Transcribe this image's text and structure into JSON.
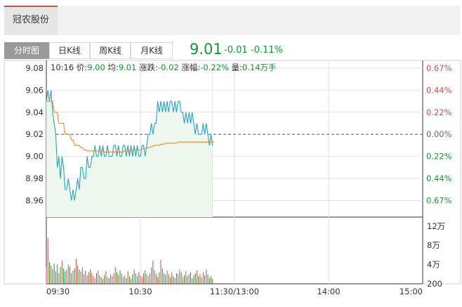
{
  "header": {
    "stock_tab": "冠农股份"
  },
  "tabs": [
    {
      "label": "分时图",
      "active": true
    },
    {
      "label": "日K线",
      "active": false
    },
    {
      "label": "周K线",
      "active": false
    },
    {
      "label": "月K线",
      "active": false
    }
  ],
  "quote": {
    "price": "9.01",
    "change": "-0.01",
    "change_pct": "-0.11%",
    "color": "#0c9b30"
  },
  "info": {
    "time": "10:16",
    "price_label": "价:",
    "price": "9.00",
    "avg_label": "均:",
    "avg": "9.01",
    "change_label": "涨跌:",
    "change": "-0.02",
    "amp_label": "涨幅:",
    "amp": "-0.22%",
    "vol_label": "量:",
    "vol": "0.14万手"
  },
  "chart_data": {
    "type": "line",
    "prev_close": 9.02,
    "ylim": [
      8.945,
      9.087
    ],
    "y_ticks": [
      "9.08",
      "9.06",
      "9.04",
      "9.02",
      "9.00",
      "8.98",
      "8.96"
    ],
    "y_tick_values": [
      9.08,
      9.06,
      9.04,
      9.02,
      9.0,
      8.98,
      8.96
    ],
    "pct_ticks": [
      "0.67%",
      "0.44%",
      "0.22%",
      "0.00%",
      "0.22%",
      "0.44%",
      "0.67%"
    ],
    "pct_colors": [
      "#c8504b",
      "#c8504b",
      "#c8504b",
      "#666666",
      "#0c9b30",
      "#0c9b30",
      "#0c9b30"
    ],
    "x_ticks": [
      "09:30",
      "10:30",
      "11:30/13:00",
      "14:00",
      "15:00"
    ],
    "x_tick_minutes": [
      0,
      60,
      120,
      180,
      240
    ],
    "total_minutes": 240,
    "series": [
      {
        "values": [
          9.05,
          9.06,
          9.05,
          9.06,
          9.04,
          9.03,
          9.02,
          8.99,
          9.0,
          8.98,
          9.0,
          8.99,
          8.97,
          8.97,
          8.98,
          8.97,
          8.96,
          8.97,
          8.96,
          8.97,
          8.98,
          8.97,
          8.99,
          8.99,
          8.98,
          8.98,
          9.0,
          8.99,
          8.99,
          9.0,
          9.0,
          9.01,
          9.0,
          9.0,
          9.01,
          9.0,
          9.01,
          9.0,
          9.0,
          9.01,
          9.0,
          9.0,
          9.0,
          9.01,
          9.01,
          9.0,
          9.01,
          9.0,
          9.0,
          9.01,
          9.01,
          9.0,
          9.01,
          9.0,
          9.01,
          9.0,
          9.01,
          9.0,
          9.01,
          9.0,
          9.0,
          9.01,
          9.01,
          9.0,
          9.01,
          9.02,
          9.02,
          9.03,
          9.02,
          9.03,
          9.03,
          9.05,
          9.04,
          9.05,
          9.04,
          9.05,
          9.04,
          9.05,
          9.04,
          9.05,
          9.05,
          9.04,
          9.05,
          9.04,
          9.05,
          9.05,
          9.04,
          9.04,
          9.03,
          9.04,
          9.03,
          9.04,
          9.03,
          9.04,
          9.03,
          9.02,
          9.03,
          9.02,
          9.02,
          9.02,
          9.03,
          9.02,
          9.03,
          9.02,
          9.01,
          9.02,
          9.01
        ]
      },
      {
        "values": [
          9.05,
          9.05,
          9.05,
          9.05,
          9.05,
          9.04,
          9.04,
          9.04,
          9.03,
          9.03,
          9.03,
          9.03,
          9.02,
          9.02,
          9.02,
          9.02,
          9.015,
          9.015,
          9.01,
          9.01,
          9.01,
          9.01,
          9.008,
          9.008,
          9.006,
          9.006,
          9.005,
          9.005,
          9.005,
          9.005,
          9.005,
          9.005,
          9.005,
          9.005,
          9.005,
          9.005,
          9.005,
          9.004,
          9.004,
          9.004,
          9.004,
          9.004,
          9.004,
          9.004,
          9.004,
          9.004,
          9.004,
          9.004,
          9.004,
          9.004,
          9.005,
          9.005,
          9.005,
          9.005,
          9.005,
          9.005,
          9.006,
          9.006,
          9.006,
          9.006,
          9.006,
          9.007,
          9.007,
          9.007,
          9.008,
          9.008,
          9.008,
          9.009,
          9.009,
          9.01,
          9.01,
          9.01,
          9.01,
          9.011,
          9.011,
          9.011,
          9.012,
          9.012,
          9.012,
          9.012,
          9.012,
          9.012,
          9.012,
          9.012,
          9.013,
          9.013,
          9.013,
          9.013,
          9.013,
          9.013,
          9.013,
          9.013,
          9.013,
          9.013,
          9.013,
          9.013,
          9.013,
          9.013,
          9.013,
          9.013,
          9.013,
          9.013,
          9.013,
          9.013,
          9.013,
          9.013,
          9.013,
          9.013
        ]
      }
    ],
    "volume": {
      "ylim": [
        0,
        130000
      ],
      "ticks": [
        "12万",
        "8万",
        "4万",
        "200"
      ],
      "tick_values": [
        120000,
        80000,
        40000,
        200
      ],
      "values": [
        35000,
        95000,
        45000,
        38000,
        30000,
        42000,
        26000,
        40000,
        22000,
        35000,
        48000,
        32000,
        26000,
        30000,
        40000,
        36000,
        22000,
        28000,
        32000,
        52000,
        38000,
        30000,
        26000,
        34000,
        20000,
        28000,
        18000,
        24000,
        30000,
        22000,
        16000,
        12000,
        22000,
        28000,
        18000,
        14000,
        10000,
        18000,
        26000,
        14000,
        12000,
        20000,
        16000,
        22000,
        35000,
        24000,
        18000,
        28000,
        22000,
        14000,
        18000,
        12000,
        26000,
        16000,
        10000,
        20000,
        30000,
        22000,
        16000,
        24000,
        18000,
        14000,
        22000,
        28000,
        20000,
        16000,
        22000,
        34000,
        48000,
        28000,
        20000,
        14000,
        24000,
        50000,
        32000,
        22000,
        18000,
        28000,
        20000,
        14000,
        24000,
        16000,
        12000,
        22000,
        20000,
        30000,
        24000,
        14000,
        18000,
        26000,
        16000,
        20000,
        24000,
        12000,
        18000,
        22000,
        28000,
        16000,
        20000,
        14000,
        24000,
        18000,
        30000,
        20000,
        12000,
        16000,
        10000
      ]
    },
    "colors": {
      "price_line": "#2aa1c4",
      "avg_line": "#e58a1d",
      "area_fill": "#eef7ee",
      "vol_up": "#c8504b",
      "vol_down": "#0c9b30",
      "grid": "#e2e2e2"
    }
  }
}
